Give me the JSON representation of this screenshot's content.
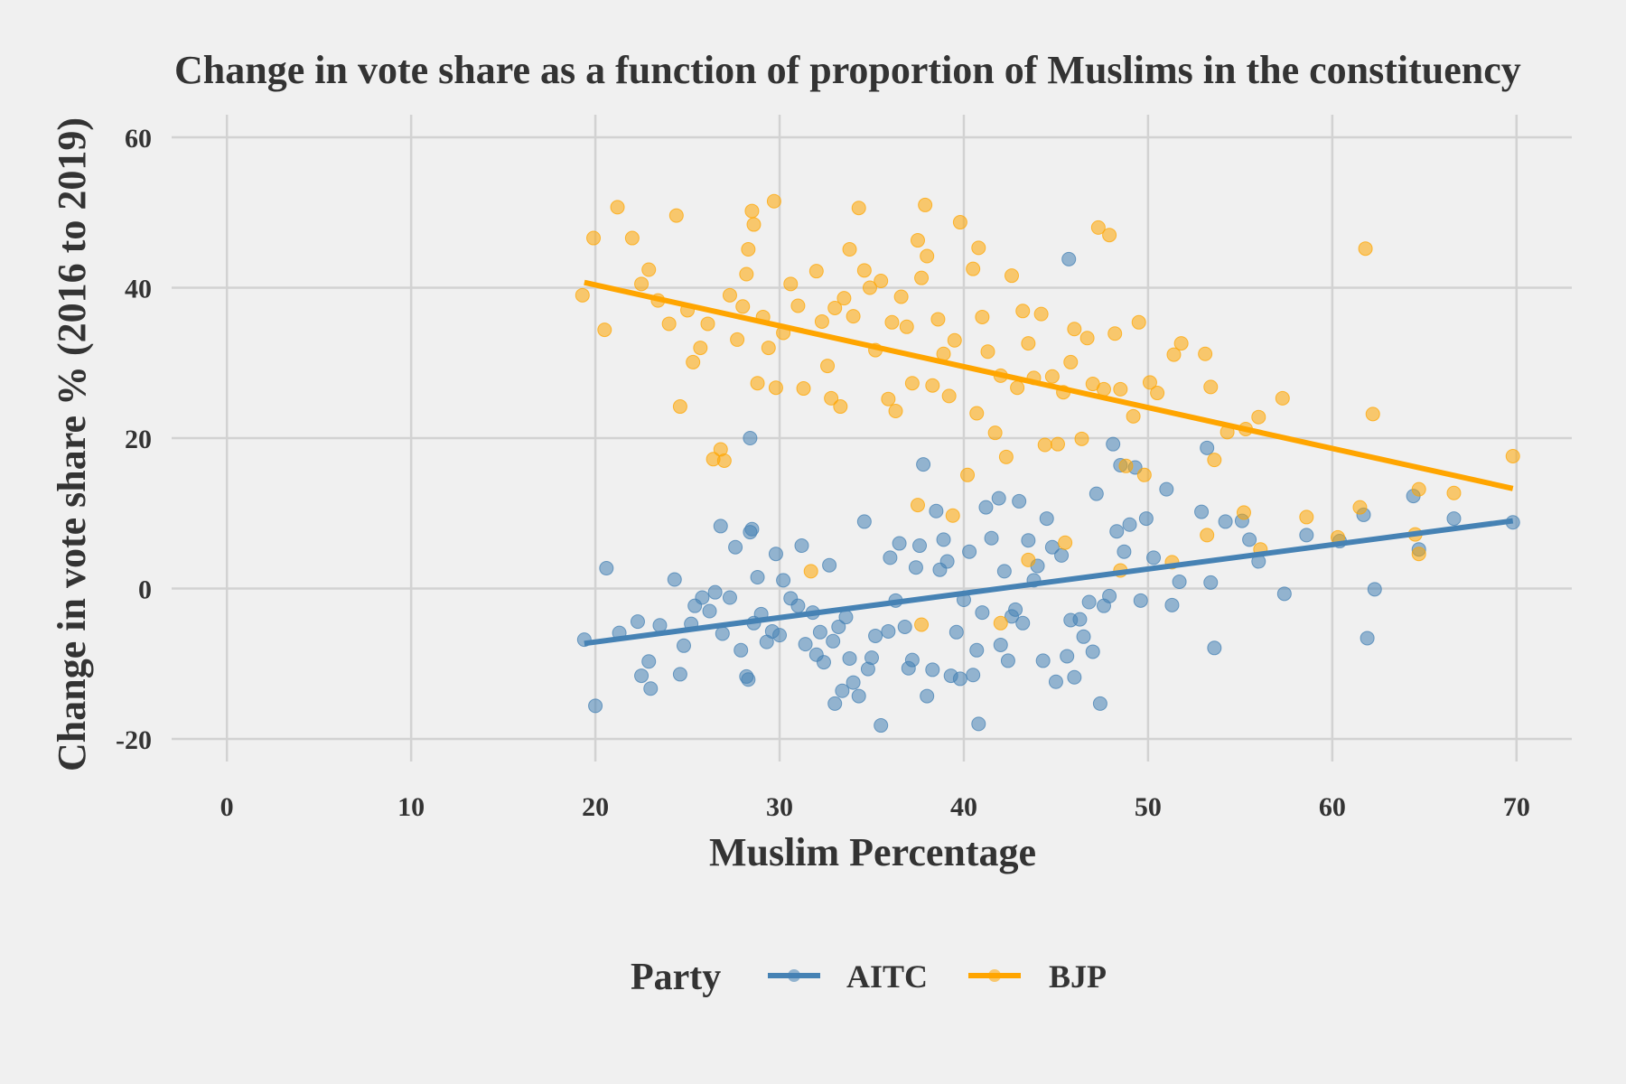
{
  "chart_data": {
    "type": "scatter",
    "title": "Change in vote share as a function of proportion of Muslims in the constituency",
    "xlabel": "Muslim Percentage",
    "ylabel": "Change in vote share % (2016 to 2019)",
    "xlim": [
      -3,
      73
    ],
    "ylim": [
      -23,
      63
    ],
    "xticks": [
      0,
      10,
      20,
      30,
      40,
      50,
      60,
      70
    ],
    "xtick_labels": [
      "0",
      "10",
      "20",
      "30",
      "40",
      "50",
      "60",
      "70"
    ],
    "yticks": [
      -20,
      0,
      20,
      40,
      60
    ],
    "ytick_labels": [
      "-20",
      "0",
      "20",
      "40",
      "60"
    ],
    "grid": true,
    "legend": {
      "title": "Party",
      "position": "bottom"
    },
    "series": [
      {
        "name": "AITC",
        "color": "#4682b4",
        "points": [
          [
            19.4,
            -6.8
          ],
          [
            20.0,
            -15.6
          ],
          [
            20.6,
            2.7
          ],
          [
            21.3,
            -5.9
          ],
          [
            22.3,
            -4.4
          ],
          [
            22.5,
            -11.6
          ],
          [
            22.9,
            -9.7
          ],
          [
            23.0,
            -13.3
          ],
          [
            23.5,
            -4.9
          ],
          [
            24.3,
            1.2
          ],
          [
            24.6,
            -11.4
          ],
          [
            24.8,
            -7.6
          ],
          [
            25.2,
            -4.7
          ],
          [
            25.4,
            -2.3
          ],
          [
            25.8,
            -1.2
          ],
          [
            26.2,
            -3.0
          ],
          [
            26.5,
            -0.5
          ],
          [
            26.8,
            8.3
          ],
          [
            26.9,
            -6.0
          ],
          [
            27.3,
            -1.2
          ],
          [
            27.6,
            5.5
          ],
          [
            27.9,
            -8.2
          ],
          [
            28.2,
            -11.7
          ],
          [
            28.3,
            -12.1
          ],
          [
            28.4,
            7.5
          ],
          [
            28.5,
            7.9
          ],
          [
            28.6,
            -4.6
          ],
          [
            28.8,
            1.5
          ],
          [
            29.0,
            -3.4
          ],
          [
            29.3,
            -7.1
          ],
          [
            29.6,
            -5.7
          ],
          [
            29.8,
            4.6
          ],
          [
            30.0,
            -6.2
          ],
          [
            30.2,
            1.1
          ],
          [
            30.6,
            -1.3
          ],
          [
            31.0,
            -2.3
          ],
          [
            31.2,
            5.7
          ],
          [
            31.4,
            -7.4
          ],
          [
            31.8,
            -3.2
          ],
          [
            32.0,
            -8.8
          ],
          [
            32.2,
            -5.8
          ],
          [
            32.4,
            -9.8
          ],
          [
            32.7,
            3.1
          ],
          [
            32.9,
            -7.0
          ],
          [
            33.0,
            -15.3
          ],
          [
            33.2,
            -5.1
          ],
          [
            33.4,
            -13.6
          ],
          [
            33.6,
            -3.8
          ],
          [
            33.8,
            -9.3
          ],
          [
            34.0,
            -12.5
          ],
          [
            34.3,
            -14.3
          ],
          [
            34.6,
            8.9
          ],
          [
            34.8,
            -10.7
          ],
          [
            35.0,
            -9.2
          ],
          [
            35.2,
            -6.3
          ],
          [
            35.5,
            -18.2
          ],
          [
            35.9,
            -5.7
          ],
          [
            36.0,
            4.1
          ],
          [
            36.3,
            -1.6
          ],
          [
            36.5,
            6.0
          ],
          [
            36.8,
            -5.1
          ],
          [
            37.0,
            -10.6
          ],
          [
            37.2,
            -9.5
          ],
          [
            37.4,
            2.8
          ],
          [
            37.6,
            5.7
          ],
          [
            37.8,
            16.5
          ],
          [
            38.0,
            -14.3
          ],
          [
            38.3,
            -10.8
          ],
          [
            38.5,
            10.3
          ],
          [
            38.7,
            2.5
          ],
          [
            38.9,
            6.5
          ],
          [
            39.1,
            3.6
          ],
          [
            39.3,
            -11.6
          ],
          [
            39.6,
            -5.8
          ],
          [
            39.8,
            -12.0
          ],
          [
            40.0,
            -1.5
          ],
          [
            40.3,
            4.9
          ],
          [
            40.5,
            -11.5
          ],
          [
            40.7,
            -8.2
          ],
          [
            40.8,
            -18.0
          ],
          [
            41.0,
            -3.2
          ],
          [
            41.2,
            10.8
          ],
          [
            41.5,
            6.7
          ],
          [
            41.9,
            12.0
          ],
          [
            42.0,
            -7.5
          ],
          [
            42.2,
            2.3
          ],
          [
            42.4,
            -9.6
          ],
          [
            42.6,
            -3.7
          ],
          [
            42.8,
            -2.8
          ],
          [
            43.0,
            11.6
          ],
          [
            43.2,
            -4.6
          ],
          [
            43.5,
            6.4
          ],
          [
            43.8,
            1.1
          ],
          [
            44.0,
            3.0
          ],
          [
            44.3,
            -9.6
          ],
          [
            44.5,
            9.3
          ],
          [
            44.8,
            5.5
          ],
          [
            45.0,
            -12.4
          ],
          [
            45.3,
            4.4
          ],
          [
            45.6,
            -9.0
          ],
          [
            45.8,
            -4.2
          ],
          [
            46.0,
            -11.8
          ],
          [
            46.3,
            -4.1
          ],
          [
            46.5,
            -6.4
          ],
          [
            46.8,
            -1.8
          ],
          [
            47.0,
            -8.4
          ],
          [
            47.2,
            12.6
          ],
          [
            47.4,
            -15.3
          ],
          [
            47.6,
            -2.3
          ],
          [
            47.9,
            -1.0
          ],
          [
            48.1,
            19.2
          ],
          [
            48.3,
            7.6
          ],
          [
            48.5,
            16.4
          ],
          [
            48.7,
            4.9
          ],
          [
            49.0,
            8.5
          ],
          [
            49.3,
            16.1
          ],
          [
            49.6,
            -1.6
          ],
          [
            49.9,
            9.3
          ],
          [
            50.3,
            4.1
          ],
          [
            51.0,
            13.2
          ],
          [
            51.3,
            -2.2
          ],
          [
            51.7,
            0.9
          ],
          [
            52.9,
            10.2
          ],
          [
            53.2,
            18.7
          ],
          [
            53.4,
            0.8
          ],
          [
            53.6,
            -7.9
          ],
          [
            54.2,
            8.9
          ],
          [
            55.1,
            9.0
          ],
          [
            55.5,
            6.5
          ],
          [
            56.0,
            3.6
          ],
          [
            57.4,
            -0.7
          ],
          [
            58.6,
            7.1
          ],
          [
            60.4,
            6.3
          ],
          [
            61.7,
            9.8
          ],
          [
            61.9,
            -6.6
          ],
          [
            62.3,
            -0.1
          ],
          [
            64.4,
            12.3
          ],
          [
            64.7,
            5.2
          ],
          [
            66.6,
            9.3
          ],
          [
            69.8,
            8.8
          ],
          [
            45.7,
            43.8
          ],
          [
            28.4,
            20.0
          ]
        ],
        "trend": [
          [
            19.4,
            -7.3
          ],
          [
            69.8,
            9.0
          ]
        ]
      },
      {
        "name": "BJP",
        "color": "#ffa500",
        "points": [
          [
            19.3,
            39.0
          ],
          [
            19.9,
            46.6
          ],
          [
            20.5,
            34.4
          ],
          [
            21.2,
            50.7
          ],
          [
            22.0,
            46.6
          ],
          [
            22.5,
            40.5
          ],
          [
            22.9,
            42.4
          ],
          [
            23.4,
            38.3
          ],
          [
            24.0,
            35.2
          ],
          [
            24.4,
            49.6
          ],
          [
            24.6,
            24.2
          ],
          [
            25.0,
            37.0
          ],
          [
            25.3,
            30.1
          ],
          [
            25.7,
            32.0
          ],
          [
            26.1,
            35.2
          ],
          [
            26.4,
            17.2
          ],
          [
            26.8,
            18.5
          ],
          [
            27.0,
            17.0
          ],
          [
            27.3,
            39.0
          ],
          [
            27.7,
            33.1
          ],
          [
            28.0,
            37.5
          ],
          [
            28.2,
            41.8
          ],
          [
            28.3,
            45.1
          ],
          [
            28.5,
            50.2
          ],
          [
            28.6,
            48.4
          ],
          [
            28.8,
            27.3
          ],
          [
            29.1,
            36.1
          ],
          [
            29.4,
            32.0
          ],
          [
            29.7,
            51.5
          ],
          [
            29.8,
            26.7
          ],
          [
            30.2,
            34.0
          ],
          [
            30.6,
            40.5
          ],
          [
            31.0,
            37.6
          ],
          [
            31.3,
            26.6
          ],
          [
            31.7,
            2.3
          ],
          [
            32.0,
            42.2
          ],
          [
            32.3,
            35.5
          ],
          [
            32.6,
            29.6
          ],
          [
            32.8,
            25.3
          ],
          [
            33.0,
            37.3
          ],
          [
            33.3,
            24.2
          ],
          [
            33.5,
            38.6
          ],
          [
            33.8,
            45.1
          ],
          [
            34.0,
            36.2
          ],
          [
            34.3,
            50.6
          ],
          [
            34.6,
            42.3
          ],
          [
            34.9,
            40.0
          ],
          [
            35.2,
            31.7
          ],
          [
            35.5,
            40.9
          ],
          [
            35.9,
            25.2
          ],
          [
            36.1,
            35.4
          ],
          [
            36.3,
            23.6
          ],
          [
            36.6,
            38.8
          ],
          [
            36.9,
            34.8
          ],
          [
            37.2,
            27.3
          ],
          [
            37.5,
            46.3
          ],
          [
            37.7,
            41.3
          ],
          [
            37.9,
            51.0
          ],
          [
            38.0,
            44.2
          ],
          [
            38.3,
            27.0
          ],
          [
            38.6,
            35.8
          ],
          [
            38.9,
            31.2
          ],
          [
            39.2,
            25.6
          ],
          [
            39.5,
            33.0
          ],
          [
            39.8,
            48.7
          ],
          [
            40.2,
            15.1
          ],
          [
            40.5,
            42.5
          ],
          [
            40.8,
            45.3
          ],
          [
            41.0,
            36.1
          ],
          [
            41.3,
            31.5
          ],
          [
            41.7,
            20.7
          ],
          [
            42.0,
            28.3
          ],
          [
            42.3,
            17.5
          ],
          [
            42.6,
            41.6
          ],
          [
            42.9,
            26.7
          ],
          [
            43.2,
            36.9
          ],
          [
            43.5,
            32.6
          ],
          [
            43.8,
            28.0
          ],
          [
            44.2,
            36.5
          ],
          [
            44.4,
            19.1
          ],
          [
            44.8,
            28.2
          ],
          [
            45.1,
            19.2
          ],
          [
            45.4,
            26.1
          ],
          [
            45.8,
            30.1
          ],
          [
            46.0,
            34.5
          ],
          [
            46.4,
            19.9
          ],
          [
            46.7,
            33.3
          ],
          [
            47.0,
            27.2
          ],
          [
            47.3,
            48.0
          ],
          [
            47.6,
            26.5
          ],
          [
            47.9,
            47.0
          ],
          [
            48.2,
            33.9
          ],
          [
            48.5,
            26.5
          ],
          [
            48.8,
            16.3
          ],
          [
            49.2,
            22.9
          ],
          [
            49.5,
            35.4
          ],
          [
            49.8,
            15.1
          ],
          [
            50.1,
            27.4
          ],
          [
            50.5,
            26.0
          ],
          [
            51.4,
            31.1
          ],
          [
            51.8,
            32.6
          ],
          [
            53.1,
            31.2
          ],
          [
            53.4,
            26.8
          ],
          [
            53.6,
            17.1
          ],
          [
            54.3,
            20.8
          ],
          [
            55.3,
            21.2
          ],
          [
            56.0,
            22.8
          ],
          [
            57.3,
            25.3
          ],
          [
            58.6,
            9.5
          ],
          [
            60.3,
            6.8
          ],
          [
            61.5,
            10.8
          ],
          [
            61.8,
            45.2
          ],
          [
            62.2,
            23.2
          ],
          [
            64.7,
            13.2
          ],
          [
            66.6,
            12.7
          ],
          [
            69.8,
            17.6
          ],
          [
            37.5,
            11.1
          ],
          [
            37.7,
            -4.8
          ],
          [
            39.4,
            9.7
          ],
          [
            40.7,
            23.3
          ],
          [
            42.0,
            -4.6
          ],
          [
            43.5,
            3.8
          ],
          [
            45.5,
            6.1
          ],
          [
            48.5,
            2.4
          ],
          [
            51.3,
            3.5
          ],
          [
            53.2,
            7.1
          ],
          [
            55.2,
            10.1
          ],
          [
            56.1,
            5.2
          ],
          [
            64.5,
            7.2
          ],
          [
            64.7,
            4.6
          ]
        ],
        "trend": [
          [
            19.4,
            40.7
          ],
          [
            69.8,
            13.3
          ]
        ]
      }
    ]
  }
}
